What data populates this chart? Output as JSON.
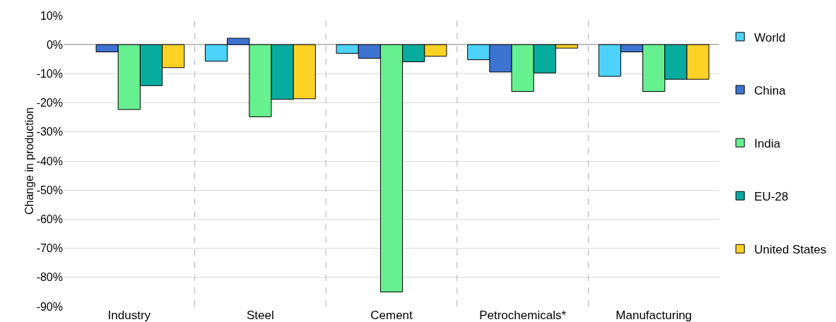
{
  "chart_data": {
    "type": "bar",
    "ylabel": "Change in production",
    "categories": [
      "Industry",
      "Steel",
      "Cement",
      "Petrochemicals*",
      "Manufacturing"
    ],
    "series": [
      {
        "name": "World",
        "color": "#4dd2fb",
        "values": [
          null,
          -5.7,
          -3,
          -5.2,
          -10.9
        ]
      },
      {
        "name": "China",
        "color": "#3d74d2",
        "values": [
          -2.5,
          2.2,
          -4.7,
          -9.4,
          -2.5
        ]
      },
      {
        "name": "India",
        "color": "#66f090",
        "values": [
          -22.3,
          -24.8,
          -85,
          -16.1,
          -16.1
        ]
      },
      {
        "name": "EU-28",
        "color": "#07ac9f",
        "values": [
          -14.1,
          -18.8,
          -5.9,
          -9.7,
          -11.9
        ]
      },
      {
        "name": "United States",
        "color": "#fed225",
        "values": [
          -7.9,
          -18.6,
          -4,
          -1.2,
          -11.9
        ]
      }
    ],
    "ylim": [
      -90,
      10
    ],
    "yticks": [
      {
        "value": -90,
        "label": "-90%"
      },
      {
        "value": -80,
        "label": "-80%"
      },
      {
        "value": -70,
        "label": "-70%"
      },
      {
        "value": -60,
        "label": "-60%"
      },
      {
        "value": -50,
        "label": "-50%"
      },
      {
        "value": -40,
        "label": "-40%"
      },
      {
        "value": -30,
        "label": "-30%"
      },
      {
        "value": -20,
        "label": "-20%"
      },
      {
        "value": -10,
        "label": "-10%"
      },
      {
        "value": 0,
        "label": "0%"
      },
      {
        "value": 10,
        "label": "10%"
      }
    ],
    "grid": "y",
    "legend": "right"
  }
}
